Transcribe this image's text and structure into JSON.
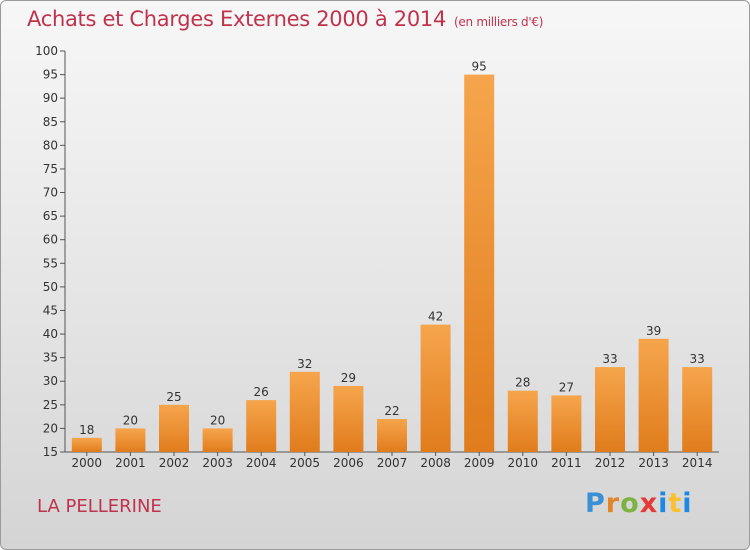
{
  "chart_data": {
    "type": "bar",
    "title": "Achats et Charges Externes 2000 à 2014",
    "subtitle": "(en milliers d'€)",
    "categories": [
      "2000",
      "2001",
      "2002",
      "2003",
      "2004",
      "2005",
      "2006",
      "2007",
      "2008",
      "2009",
      "2010",
      "2011",
      "2012",
      "2013",
      "2014"
    ],
    "values": [
      18,
      20,
      25,
      20,
      26,
      32,
      29,
      22,
      42,
      95,
      28,
      27,
      33,
      39,
      33
    ],
    "ylim": [
      15,
      100
    ],
    "yticks": [
      15,
      20,
      25,
      30,
      35,
      40,
      45,
      50,
      55,
      60,
      65,
      70,
      75,
      80,
      85,
      90,
      95,
      100
    ],
    "grid": false,
    "bar_colors": {
      "light": "#f6a54c",
      "dark": "#e07c1c"
    }
  },
  "footer": {
    "place": "LA PELLERINE",
    "logo": {
      "p": "P",
      "r": "r",
      "o": "o",
      "x": "x",
      "i": "i",
      "t": "t",
      "i2": "i"
    }
  }
}
